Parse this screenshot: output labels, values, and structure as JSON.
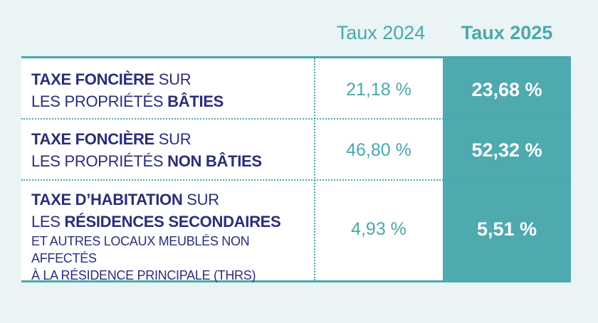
{
  "header": {
    "col_2024": "Taux 2024",
    "col_2025": "Taux 2025"
  },
  "rows": [
    {
      "line1_bold": "TAXE FONCIÈRE",
      "line1_rest": " SUR",
      "line2_pre": "LES PROPRIÉTÉS ",
      "line2_bold": "BÂTIES",
      "rate_2024": "21,18 %",
      "rate_2025": "23,68 %"
    },
    {
      "line1_bold": "TAXE FONCIÈRE",
      "line1_rest": " SUR",
      "line2_pre": "LES PROPRIÉTÉS ",
      "line2_bold": "NON BÂTIES",
      "rate_2024": "46,80 %",
      "rate_2025": "52,32 %"
    },
    {
      "line1_bold": "TAXE D’HABITATION",
      "line1_rest": " SUR",
      "line2_pre": "LES ",
      "line2_bold": "RÉSIDENCES SECONDAIRES",
      "line3": "ET AUTRES LOCAUX MEUBLÉS NON AFFECTÉS",
      "line4": "À LA RÉSIDENCE PRINCIPALE (THRS)",
      "rate_2024": "4,93 %",
      "rate_2025": "5,51 %"
    }
  ]
}
